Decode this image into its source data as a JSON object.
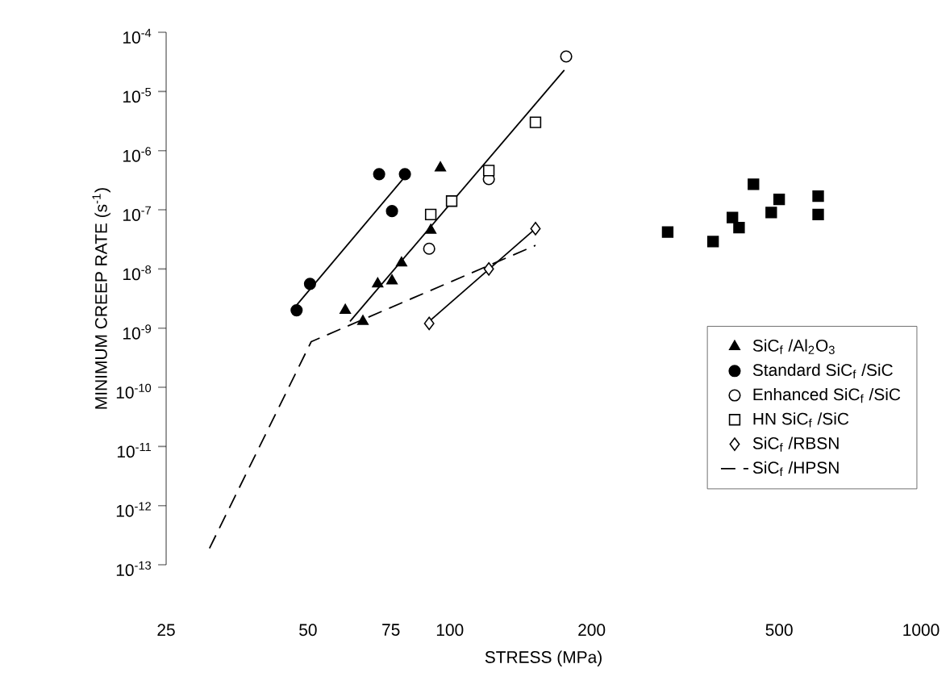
{
  "chart_data": {
    "type": "scatter",
    "xlabel": "STRESS (MPa)",
    "ylabel": "MINIMUM CREEP RATE (s$^{-1}$)",
    "log": "xy",
    "grid": false,
    "legend": "bottom right",
    "xlim": [
      25,
      1000
    ],
    "ylim": [
      1e-13,
      0.0001
    ],
    "xticks": [
      25,
      50,
      75,
      100,
      200,
      500,
      1000
    ],
    "yticks": [
      {
        "value": 1e-13,
        "label": "10$^{-13}$"
      },
      {
        "value": 1e-12,
        "label": "10$^{-12}$"
      },
      {
        "value": 1e-11,
        "label": "10$^{-11}$"
      },
      {
        "value": 1e-10,
        "label": "10$^{-10}$"
      },
      {
        "value": 1e-09,
        "label": "10$^{-9}$"
      },
      {
        "value": 1e-08,
        "label": "10$^{-8}$"
      },
      {
        "value": 1e-07,
        "label": "10$^{-7}$"
      },
      {
        "value": 1e-06,
        "label": "10$^{-6}$"
      },
      {
        "value": 1e-05,
        "label": "10$^{-5}$"
      },
      {
        "value": 0.0001,
        "label": "10$^{-4}$"
      }
    ],
    "series": [
      {
        "name": "SiC$_{f}$ /Al$_{2}$O$_{3}$",
        "marker": "triangle",
        "color": "#000000",
        "x": [
          60,
          65.4,
          70.3,
          75.4,
          79,
          91.1,
          95.5
        ],
        "values": [
          2e-09,
          1.3e-09,
          5.6e-09,
          6.3e-09,
          1.26e-08,
          4.5e-08,
          5.1e-07
        ]
      },
      {
        "name": "Standard SiC$_{f}$ /SiC",
        "marker": "circle",
        "color": "#000000",
        "x": [
          47.3,
          50.5,
          70.8,
          75.4,
          80.3
        ],
        "values": [
          2e-09,
          5.6e-09,
          4e-07,
          9.5e-08,
          4e-07
        ]
      },
      {
        "name": "Enhanced SiC$_{f}$ /SiC",
        "marker": "circle",
        "color": "#ffffff",
        "x": [
          90.4,
          121,
          176.6
        ],
        "values": [
          2.2e-08,
          3.3e-07,
          3.9e-05
        ]
      },
      {
        "name": "HN SiC$_{f}$ /SiC",
        "marker": "square",
        "color": "#ffffff",
        "x": [
          91.1,
          100.9,
          121,
          152
        ],
        "values": [
          8.3e-08,
          1.4e-07,
          4.6e-07,
          3e-06
        ]
      },
      {
        "name": "SiC$_{f}$ /RBSN",
        "marker": "diamond",
        "color": "#ffffff",
        "x": [
          90.4,
          121,
          152
        ],
        "values": [
          1.2e-09,
          1e-08,
          4.8e-08
        ]
      },
      {
        "name": "SiC$_{f}$ /HPSN",
        "type": "line",
        "line_style": "dashed",
        "color": "#000000",
        "x": [
          30.9,
          50.8,
          152
        ],
        "values": [
          1.9e-13,
          5.9e-10,
          2.5e-08
        ]
      },
      {
        "marker": "square",
        "color": "#000000",
        "x": [
          290,
          362,
          398,
          411,
          441,
          481,
          500,
          605,
          605
        ],
        "values": [
          4.2e-08,
          2.9e-08,
          7.4e-08,
          5e-08,
          2.7e-07,
          9e-08,
          1.5e-07,
          1.7e-07,
          8.3e-08
        ]
      },
      {
        "type": "line",
        "line_style": "solid",
        "color": "#000000",
        "x": [
          47,
          80
        ],
        "values": [
          2.3e-09,
          3.5e-07
        ]
      },
      {
        "type": "line",
        "line_style": "solid",
        "color": "#000000",
        "x": [
          61.4,
          175
        ],
        "values": [
          1.3e-09,
          2.3e-05
        ]
      },
      {
        "type": "line",
        "line_style": "solid",
        "color": "#000000",
        "x": [
          90.4,
          152
        ],
        "values": [
          1.3e-09,
          4.8e-08
        ]
      }
    ]
  }
}
